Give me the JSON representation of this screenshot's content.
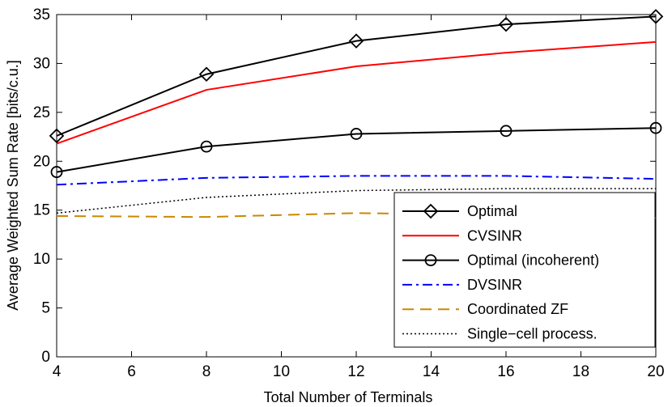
{
  "chart_data": {
    "type": "line",
    "title": "",
    "xlabel": "Total Number of Terminals",
    "ylabel": "Average Weighted Sum Rate [bits/c.u.]",
    "xlim": [
      4,
      20
    ],
    "ylim": [
      0,
      35
    ],
    "xticks": [
      4,
      6,
      8,
      10,
      12,
      14,
      16,
      18,
      20
    ],
    "yticks": [
      0,
      5,
      10,
      15,
      20,
      25,
      30,
      35
    ],
    "grid": false,
    "legend_position": "lower-right",
    "series": [
      {
        "name": "Optimal",
        "color": "#000000",
        "style": "solid",
        "marker": "diamond",
        "x": [
          4,
          8,
          12,
          16,
          20
        ],
        "y": [
          22.6,
          28.9,
          32.3,
          34.0,
          34.8
        ]
      },
      {
        "name": "CVSINR",
        "color": "#ff0000",
        "style": "solid",
        "marker": "none",
        "x": [
          4,
          8,
          12,
          16,
          20
        ],
        "y": [
          21.8,
          27.3,
          29.7,
          31.1,
          32.2
        ]
      },
      {
        "name": "Optimal (incoherent)",
        "color": "#000000",
        "style": "solid",
        "marker": "circle",
        "x": [
          4,
          8,
          12,
          16,
          20
        ],
        "y": [
          18.9,
          21.5,
          22.8,
          23.1,
          23.4
        ]
      },
      {
        "name": "DVSINR",
        "color": "#0000ff",
        "style": "dashdot",
        "marker": "none",
        "x": [
          4,
          8,
          12,
          16,
          20
        ],
        "y": [
          17.6,
          18.3,
          18.5,
          18.5,
          18.2
        ]
      },
      {
        "name": "Coordinated ZF",
        "color": "#cc8800",
        "style": "dashed",
        "marker": "none",
        "x": [
          4,
          8,
          12,
          16,
          20
        ],
        "y": [
          14.4,
          14.3,
          14.7,
          14.5,
          14.2
        ]
      },
      {
        "name": "Single−cell process.",
        "color": "#000000",
        "style": "dotted",
        "marker": "none",
        "x": [
          4,
          8,
          12,
          16,
          20
        ],
        "y": [
          14.7,
          16.3,
          17.0,
          17.2,
          17.2
        ]
      }
    ]
  }
}
